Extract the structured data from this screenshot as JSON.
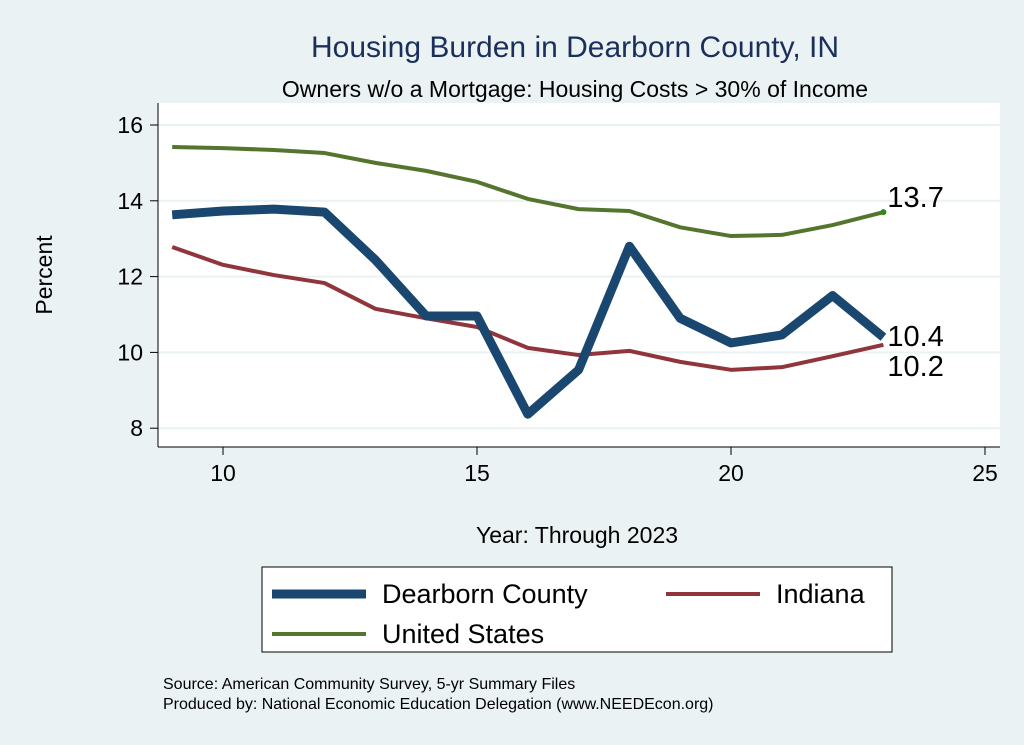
{
  "chart_data": {
    "type": "line",
    "title": "Housing Burden in Dearborn County, IN",
    "subtitle": "Owners w/o a Mortgage: Housing Costs > 30% of Income",
    "xlabel": "Year: Through 2023",
    "ylabel": "Percent",
    "xlim": [
      8.3,
      25.4
    ],
    "ylim": [
      7.5,
      16.6
    ],
    "xticks": [
      10,
      15,
      20,
      25
    ],
    "yticks": [
      8,
      10,
      12,
      14,
      16
    ],
    "grid": true,
    "x": [
      9,
      10,
      11,
      12,
      13,
      14,
      15,
      16,
      17,
      18,
      19,
      20,
      21,
      22,
      23
    ],
    "series": [
      {
        "name": "Dearborn County",
        "color": "#1a476f",
        "width": 9,
        "values": [
          13.63,
          13.73,
          13.78,
          13.7,
          12.44,
          10.96,
          10.96,
          8.37,
          9.54,
          12.8,
          10.9,
          10.25,
          10.46,
          11.5,
          10.4
        ],
        "end_label": "10.4"
      },
      {
        "name": "Indiana",
        "color": "#90353b",
        "width": 4,
        "values": [
          12.78,
          12.31,
          12.04,
          11.83,
          11.15,
          10.9,
          10.67,
          10.12,
          9.93,
          10.04,
          9.75,
          9.54,
          9.61,
          9.9,
          10.2
        ],
        "end_label": "10.2"
      },
      {
        "name": "United States",
        "color": "#55752f",
        "width": 4,
        "values": [
          15.42,
          15.39,
          15.34,
          15.26,
          15.0,
          14.79,
          14.5,
          14.05,
          13.78,
          13.73,
          13.3,
          13.07,
          13.1,
          13.36,
          13.7
        ],
        "end_label": "13.7"
      }
    ],
    "legend_position": "bottom",
    "notes": [
      "Source: American Community Survey, 5-yr Summary Files",
      "Produced by: National Economic Education Delegation (www.NEEDEcon.org)"
    ]
  },
  "colors": {
    "background": "#eaf2f3",
    "plot": "#ffffff",
    "grid": "#eaf2f3",
    "title": "#1a2f5a"
  }
}
